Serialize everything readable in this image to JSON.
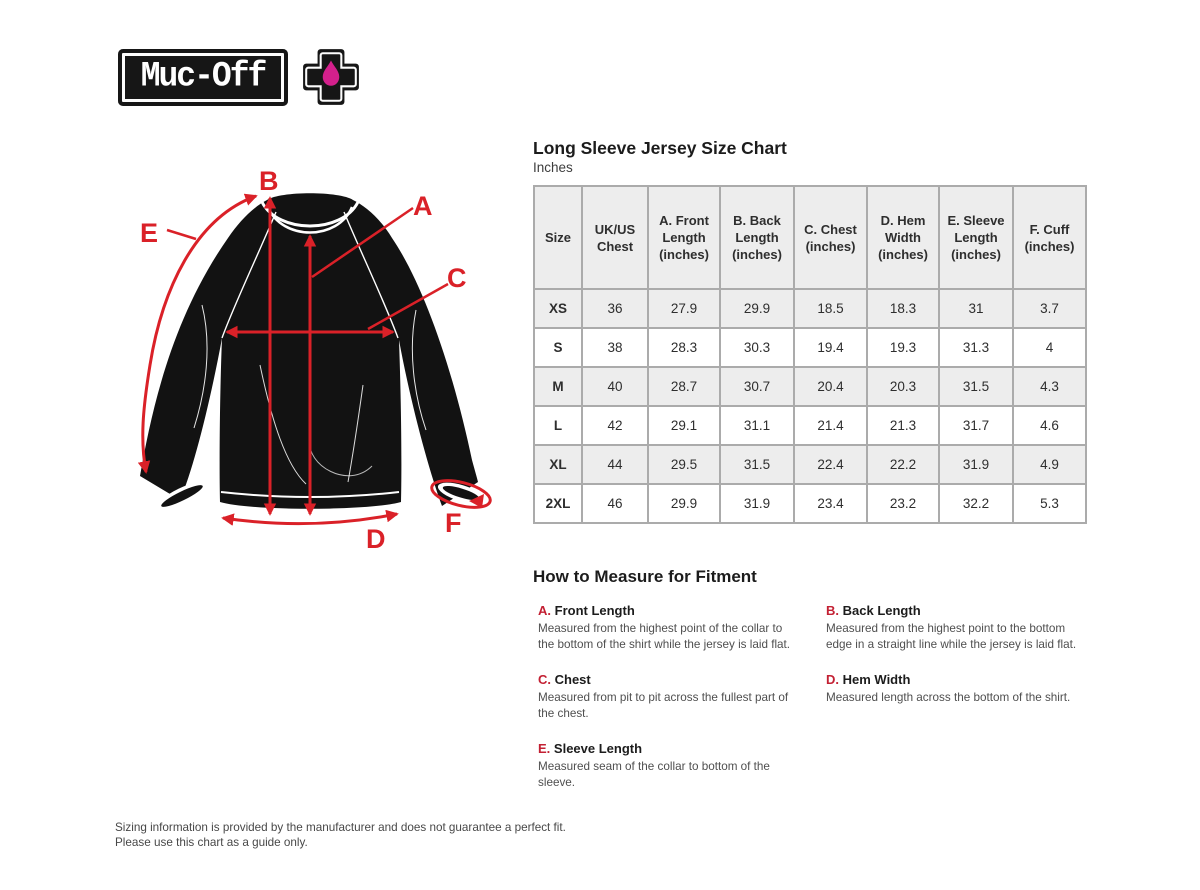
{
  "brand": {
    "logo_text": "Muc-Off",
    "logo_icon": "medical-cross-with-droplet"
  },
  "chart_data": {
    "type": "table",
    "title": "Long Sleeve Jersey Size Chart",
    "subtitle": "Inches",
    "columns": [
      "Size",
      "UK/US Chest",
      "A. Front Length (inches)",
      "B. Back Length (inches)",
      "C. Chest (inches)",
      "D. Hem Width (inches)",
      "E. Sleeve Length (inches)",
      "F. Cuff (inches)"
    ],
    "rows": [
      [
        "XS",
        "36",
        "27.9",
        "29.9",
        "18.5",
        "18.3",
        "31",
        "3.7"
      ],
      [
        "S",
        "38",
        "28.3",
        "30.3",
        "19.4",
        "19.3",
        "31.3",
        "4"
      ],
      [
        "M",
        "40",
        "28.7",
        "30.7",
        "20.4",
        "20.3",
        "31.5",
        "4.3"
      ],
      [
        "L",
        "42",
        "29.1",
        "31.1",
        "21.4",
        "21.3",
        "31.7",
        "4.6"
      ],
      [
        "XL",
        "44",
        "29.5",
        "31.5",
        "22.4",
        "22.2",
        "31.9",
        "4.9"
      ],
      [
        "2XL",
        "46",
        "29.9",
        "31.9",
        "23.4",
        "23.2",
        "32.2",
        "5.3"
      ]
    ]
  },
  "diagram": {
    "description": "long-sleeve-jersey-measurement-diagram",
    "labels": [
      "A",
      "B",
      "C",
      "D",
      "E",
      "F"
    ]
  },
  "measure": {
    "heading": "How to Measure for Fitment",
    "items": [
      {
        "letter": "A.",
        "name": "Front Length",
        "desc": "Measured from the highest point of the collar to the bottom of the shirt while the jersey is laid flat."
      },
      {
        "letter": "B.",
        "name": "Back Length",
        "desc": "Measured from the highest point to the bottom edge in a straight line while the jersey is laid flat."
      },
      {
        "letter": "C.",
        "name": "Chest",
        "desc": "Measured from pit to pit across the fullest part of the chest."
      },
      {
        "letter": "D.",
        "name": "Hem Width",
        "desc": "Measured length across the bottom of the shirt."
      },
      {
        "letter": "E.",
        "name": "Sleeve Length",
        "desc": "Measured seam of the collar to bottom of the sleeve."
      }
    ]
  },
  "footer": {
    "line1": "Sizing information is provided by the manufacturer and does not guarantee a perfect fit.",
    "line2": "Please use this chart as a guide only."
  },
  "colors": {
    "accent_red": "#da2128",
    "letter_red": "#c32033",
    "droplet_pink": "#d4208c",
    "jersey_black": "#121212",
    "table_border": "#ababab",
    "header_row_bg": "#ededed"
  }
}
